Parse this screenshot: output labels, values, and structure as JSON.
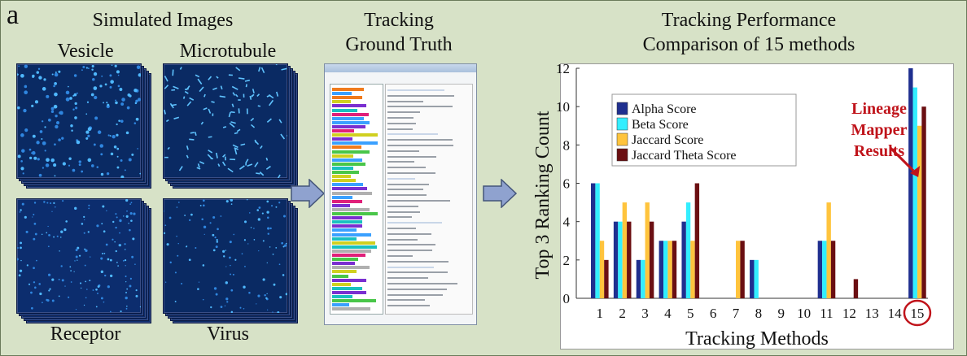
{
  "panel_letter": "a",
  "left": {
    "title": "Simulated Images",
    "labels": {
      "vesicle": "Vesicle",
      "microtubule": "Microtubule",
      "receptor": "Receptor",
      "virus": "Virus"
    }
  },
  "middle": {
    "title_line1": "Tracking",
    "title_line2": "Ground Truth"
  },
  "right": {
    "title_line1": "Tracking Performance",
    "title_line2": "Comparison of 15 methods"
  },
  "colors": {
    "alpha": "#1f2f8f",
    "beta": "#33eeff",
    "jaccard": "#ffc43d",
    "theta": "#6b0f12",
    "annotation": "#c0141b",
    "background": "#d7e2c7",
    "arrow_fill": "#8fa2cf"
  },
  "chart_data": {
    "type": "bar",
    "xlabel": "Tracking Methods",
    "ylabel": "Top 3 Ranking Count",
    "ylim": [
      0,
      12
    ],
    "yticks": [
      0,
      2,
      4,
      6,
      8,
      10,
      12
    ],
    "categories": [
      "1",
      "2",
      "3",
      "4",
      "5",
      "6",
      "7",
      "8",
      "9",
      "10",
      "11",
      "12",
      "13",
      "14",
      "15"
    ],
    "series": [
      {
        "name": "Alpha Score",
        "values": [
          6,
          4,
          2,
          3,
          4,
          0,
          0,
          2,
          0,
          0,
          3,
          0,
          0,
          0,
          12
        ]
      },
      {
        "name": "Beta Score",
        "values": [
          6,
          4,
          2,
          3,
          5,
          0,
          0,
          2,
          0,
          0,
          3,
          0,
          0,
          0,
          11
        ]
      },
      {
        "name": "Jaccard Score",
        "values": [
          3,
          5,
          5,
          3,
          3,
          0,
          3,
          0,
          0,
          0,
          5,
          0,
          0,
          0,
          9
        ]
      },
      {
        "name": "Jaccard Theta Score",
        "values": [
          2,
          4,
          4,
          3,
          6,
          0,
          3,
          0,
          0,
          0,
          3,
          1,
          0,
          0,
          10
        ]
      }
    ],
    "legend_position": "top-left",
    "annotation": {
      "lines": [
        "Lineage",
        "Mapper",
        "Results"
      ],
      "points_to": "15"
    },
    "highlight_category": "15",
    "grid": false
  }
}
